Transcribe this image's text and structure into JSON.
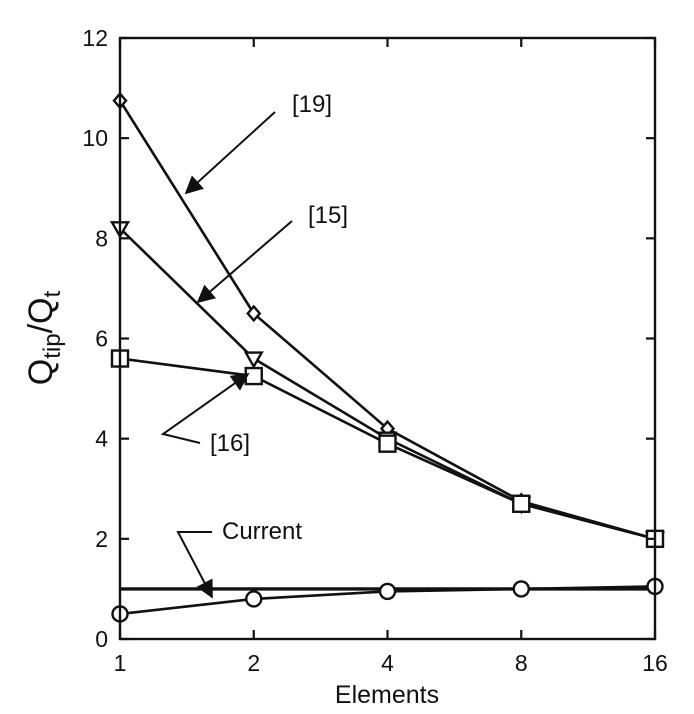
{
  "chart_data": {
    "type": "line",
    "xlabel": "Elements",
    "ylabel": "Q_tip/Q_t",
    "ylabel_main": "Q",
    "ylabel_sub1": "tip",
    "ylabel_sep": "/Q",
    "ylabel_sub2": "t",
    "x_scale": "log2",
    "x": [
      1,
      2,
      4,
      8,
      16
    ],
    "x_tick_labels": [
      "1",
      "2",
      "4",
      "8",
      "16"
    ],
    "ylim": [
      0,
      12
    ],
    "y_ticks": [
      0,
      2,
      4,
      6,
      8,
      10,
      12
    ],
    "y_tick_labels": [
      "0",
      "2",
      "4",
      "6",
      "8",
      "10",
      "12"
    ],
    "grid": false,
    "series": [
      {
        "name": "[19]",
        "marker": "diamond",
        "values": [
          10.75,
          6.5,
          4.2,
          2.75,
          2.0
        ]
      },
      {
        "name": "[15]",
        "marker": "triangle-down",
        "values": [
          8.2,
          5.6,
          4.0,
          2.7,
          2.0
        ]
      },
      {
        "name": "[16]",
        "marker": "square",
        "values": [
          5.6,
          5.25,
          3.9,
          2.7,
          2.0
        ]
      },
      {
        "name": "Current",
        "marker": "circle",
        "values": [
          0.5,
          0.8,
          0.95,
          1.0,
          1.05
        ]
      }
    ],
    "reference_line": {
      "y": 1.0
    },
    "annotations": [
      {
        "text": "[19]",
        "series": 0
      },
      {
        "text": "[15]",
        "series": 1
      },
      {
        "text": "[16]",
        "series": 2
      },
      {
        "text": "Current",
        "series": 3
      }
    ]
  }
}
